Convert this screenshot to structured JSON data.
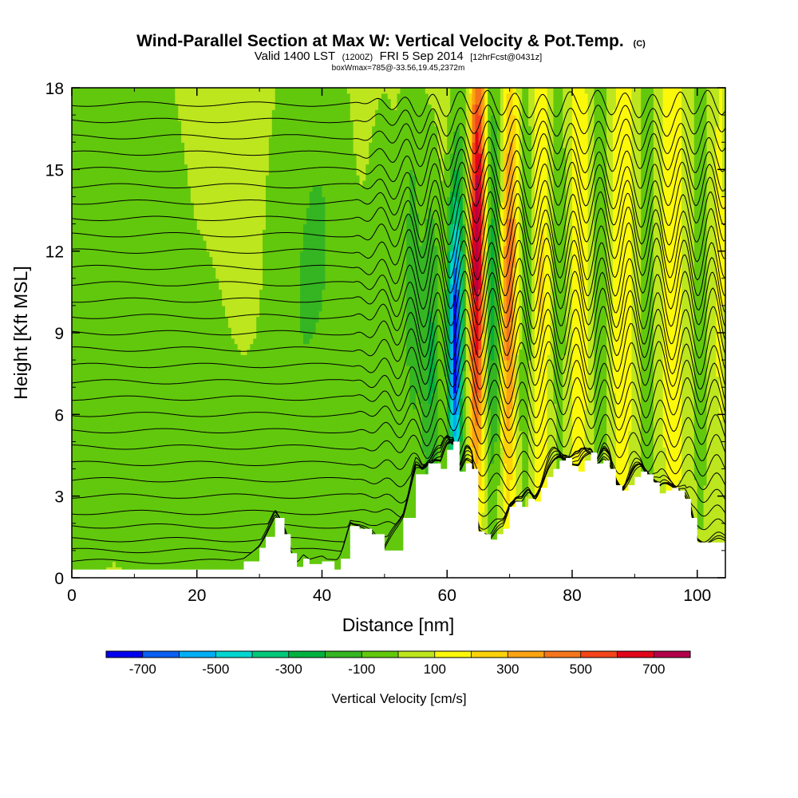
{
  "chart_data": {
    "type": "heatmap",
    "title": "Wind-Parallel Section at Max W: Vertical Velocity & Pot.Temp.",
    "title_mark": "(C)",
    "subtitle_parts": [
      "Valid 1400 LST",
      "(1200Z)",
      "FRI 5 Sep 2014",
      "[12hrFcst@0431z]"
    ],
    "subtitle2": "boxWmax=785@-33.56,19.45,2372m",
    "xlabel": "Distance [nm]",
    "ylabel": "Height [Kft MSL]",
    "xlim": [
      0,
      104.5
    ],
    "ylim": [
      0,
      18
    ],
    "x_ticks": [
      0,
      20,
      40,
      60,
      80,
      100
    ],
    "y_ticks": [
      0,
      3,
      6,
      9,
      12,
      15,
      18
    ],
    "colorbar": {
      "label": "Vertical Velocity [cm/s]",
      "tick_values": [
        -700,
        -500,
        -300,
        -100,
        100,
        300,
        500,
        700
      ],
      "tick_labels": [
        "-700",
        "-500",
        "-300",
        "-100",
        "100",
        "300",
        "500",
        "700"
      ],
      "range": [
        -800,
        800
      ],
      "colors": [
        "#0000ee",
        "#0a5ff2",
        "#00aef5",
        "#00d6d0",
        "#00c87a",
        "#00b13f",
        "#35b522",
        "#62c80d",
        "#bde61e",
        "#fcf80a",
        "#fcd20a",
        "#fba313",
        "#f4751b",
        "#f3441a",
        "#e2041b",
        "#b3004a"
      ]
    },
    "background_value": 50,
    "velocity_features": [
      {
        "x": 2,
        "z": 11,
        "sx": 6,
        "sz": 9,
        "w": -110
      },
      {
        "x": 14,
        "z": 8,
        "sx": 3.5,
        "sz": 8,
        "w": -120
      },
      {
        "x": 22,
        "z": 5,
        "sx": 3,
        "sz": 6,
        "w": -80
      },
      {
        "x": 28,
        "z": 3,
        "sx": 4,
        "sz": 3,
        "w": -110
      },
      {
        "x": 36,
        "z": 9,
        "sx": 4,
        "sz": 8,
        "w": -130
      },
      {
        "x": 41,
        "z": 14,
        "sx": 3,
        "sz": 5,
        "w": -90
      },
      {
        "x": 45,
        "z": 4,
        "sx": 3,
        "sz": 4,
        "w": -110
      },
      {
        "x": 50,
        "z": 9,
        "sx": 2.5,
        "sz": 8,
        "w": -90
      },
      {
        "x": 54.5,
        "z": 11,
        "sx": 1.2,
        "sz": 7,
        "w": -160
      },
      {
        "x": 57.5,
        "z": 8,
        "sx": 1.1,
        "sz": 5,
        "w": -260
      },
      {
        "x": 61.3,
        "z": 8,
        "sx": 0.7,
        "sz": 3.5,
        "w": -560
      },
      {
        "x": 61.3,
        "z": 10,
        "sx": 1.0,
        "sz": 4,
        "w": -280
      },
      {
        "x": 62.8,
        "z": 14,
        "sx": 1.1,
        "sz": 5,
        "w": -120
      },
      {
        "x": 64.7,
        "z": 11,
        "sx": 0.9,
        "sz": 5,
        "w": 650
      },
      {
        "x": 65.2,
        "z": 16,
        "sx": 1.0,
        "sz": 3,
        "w": 230
      },
      {
        "x": 67.3,
        "z": 11,
        "sx": 0.9,
        "sz": 6,
        "w": -300
      },
      {
        "x": 69.8,
        "z": 9,
        "sx": 0.8,
        "sz": 5,
        "w": 320
      },
      {
        "x": 70.5,
        "z": 14,
        "sx": 1.0,
        "sz": 4,
        "w": 180
      },
      {
        "x": 72.5,
        "z": 12,
        "sx": 1.0,
        "sz": 7,
        "w": -150
      },
      {
        "x": 75,
        "z": 11,
        "sx": 1.1,
        "sz": 8,
        "w": 170
      },
      {
        "x": 78,
        "z": 12,
        "sx": 1.2,
        "sz": 8,
        "w": -110
      },
      {
        "x": 81,
        "z": 12,
        "sx": 1.4,
        "sz": 9,
        "w": 120
      },
      {
        "x": 84.5,
        "z": 12,
        "sx": 1.2,
        "sz": 9,
        "w": -110
      },
      {
        "x": 88,
        "z": 12,
        "sx": 1.5,
        "sz": 9,
        "w": 110
      },
      {
        "x": 92,
        "z": 12,
        "sx": 1.3,
        "sz": 9,
        "w": -110
      },
      {
        "x": 96,
        "z": 12,
        "sx": 1.6,
        "sz": 9,
        "w": 110
      },
      {
        "x": 100.5,
        "z": 12,
        "sx": 1.3,
        "sz": 9,
        "w": -100
      },
      {
        "x": 103.5,
        "z": 12,
        "sx": 1.0,
        "sz": 9,
        "w": 70
      }
    ],
    "terrain": {
      "x": [
        0,
        23,
        27.5,
        30,
        31,
        32.5,
        34,
        35,
        36,
        37,
        38,
        40,
        42,
        43,
        44.5,
        46,
        48,
        50,
        53,
        55,
        56,
        57,
        58,
        59,
        60,
        61,
        62,
        63,
        64,
        65,
        66,
        67,
        68,
        69,
        70,
        71,
        72,
        73,
        74,
        75,
        76,
        77,
        78,
        79,
        80,
        81,
        82,
        83,
        84,
        85,
        86,
        87,
        88,
        89,
        90,
        91,
        92,
        93,
        94,
        95,
        96,
        97,
        98,
        99,
        100,
        101,
        102,
        103,
        104.5
      ],
      "z": [
        0.3,
        0.3,
        0.6,
        1.1,
        1.5,
        2.2,
        1.6,
        0.9,
        0.4,
        0.7,
        0.5,
        0.6,
        0.3,
        0.7,
        1.9,
        1.8,
        1.6,
        1.0,
        2.2,
        3.8,
        3.8,
        4.2,
        4.2,
        4.0,
        4.7,
        5.0,
        3.9,
        4.2,
        4.0,
        1.7,
        1.6,
        1.4,
        1.6,
        1.8,
        2.6,
        2.8,
        2.6,
        2.9,
        2.8,
        3.3,
        3.7,
        4.0,
        4.3,
        4.4,
        4.1,
        3.9,
        4.3,
        4.6,
        4.2,
        4.3,
        4.0,
        3.4,
        3.2,
        3.4,
        3.7,
        3.9,
        3.8,
        3.5,
        3.1,
        3.2,
        3.3,
        3.2,
        2.9,
        2.2,
        1.3,
        1.3,
        1.3,
        1.3,
        1.3
      ]
    },
    "theta_contours": {
      "base_heights": [
        0.6,
        1.0,
        1.4,
        1.9,
        2.4,
        3.0,
        3.6,
        4.2,
        4.8,
        5.4,
        6.0,
        6.6,
        7.2,
        7.8,
        8.4,
        9.0,
        9.6,
        10.2,
        10.8,
        11.4,
        12.0,
        12.6,
        13.2,
        13.8,
        14.4,
        15.0,
        15.6,
        16.2,
        16.8,
        17.4
      ],
      "wave_onset_x": 45,
      "wave_wavelength_nm": 4.4,
      "wave_max_amplitude_kft": 1.0
    }
  }
}
